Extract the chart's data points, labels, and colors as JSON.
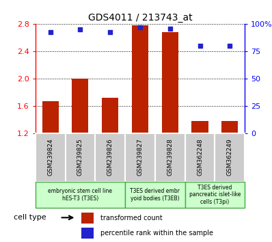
{
  "title": "GDS4011 / 213743_at",
  "samples": [
    "GSM239824",
    "GSM239825",
    "GSM239826",
    "GSM239827",
    "GSM239828",
    "GSM362248",
    "GSM362249"
  ],
  "transformed_count": [
    1.67,
    2.0,
    1.72,
    2.78,
    2.68,
    1.38,
    1.38
  ],
  "percentile_rank": [
    93,
    95,
    93,
    97,
    96,
    80,
    80
  ],
  "ylim_left": [
    1.2,
    2.8
  ],
  "ylim_right": [
    0,
    100
  ],
  "yticks_left": [
    1.2,
    1.6,
    2.0,
    2.4,
    2.8
  ],
  "yticks_right": [
    0,
    25,
    50,
    75,
    100
  ],
  "ytick_labels_right": [
    "0",
    "25",
    "50",
    "75",
    "100%"
  ],
  "bar_color": "#bb2200",
  "dot_color": "#2222cc",
  "bar_width": 0.55,
  "groups": [
    {
      "label": "embryonic stem cell line\nhES-T3 (T3ES)",
      "indices": [
        0,
        1,
        2
      ]
    },
    {
      "label": "T3ES derived embr\nyoid bodies (T3EB)",
      "indices": [
        3,
        4
      ]
    },
    {
      "label": "T3ES derived\npancreatic islet-like\ncells (T3pi)",
      "indices": [
        5,
        6
      ]
    }
  ],
  "cell_type_label": "cell type",
  "legend_bar_label": "transformed count",
  "legend_dot_label": "percentile rank within the sample",
  "tick_bg_color": "#cccccc",
  "group_bg_color": "#ccffcc",
  "group_border_color": "#44aa44"
}
